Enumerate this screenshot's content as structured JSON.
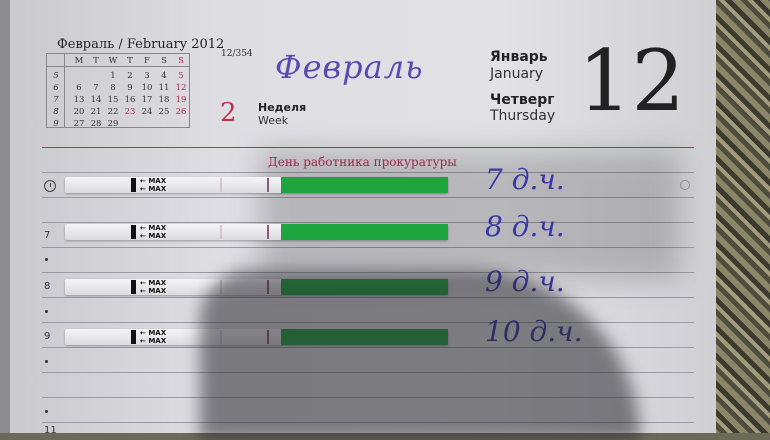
{
  "calendar": {
    "title": "Февраль / February 2012",
    "weekdays": [
      "M",
      "T",
      "W",
      "T",
      "F",
      "S",
      "S"
    ],
    "week_numbers": [
      "5",
      "6",
      "7",
      "8",
      "9"
    ],
    "rows": [
      [
        "",
        "",
        "1",
        "2",
        "3",
        "4",
        "5"
      ],
      [
        "6",
        "7",
        "8",
        "9",
        "10",
        "11",
        "12"
      ],
      [
        "13",
        "14",
        "15",
        "16",
        "17",
        "18",
        "19"
      ],
      [
        "20",
        "21",
        "22",
        "23",
        "24",
        "25",
        "26"
      ],
      [
        "27",
        "28",
        "29",
        "",
        "",
        "",
        ""
      ]
    ],
    "red_days": [
      "5",
      "12",
      "19",
      "23",
      "26"
    ]
  },
  "page_counter": "12/354",
  "month_handwritten": "Февраль",
  "week": {
    "number": "2",
    "label_ru": "Неделя",
    "label_en": "Week"
  },
  "month": {
    "ru": "Январь",
    "en": "January"
  },
  "weekday": {
    "ru": "Четверг",
    "en": "Thursday"
  },
  "day_number": "12",
  "holiday": "День работника прокуратуры",
  "hours": [
    "7",
    "8",
    "9",
    "11"
  ],
  "strips": [
    {
      "max_label": "MAX",
      "note": "7 д.ч."
    },
    {
      "max_label": "MAX",
      "note": "8 д.ч."
    },
    {
      "max_label": "MAX",
      "note": "9 д.ч."
    },
    {
      "max_label": "MAX",
      "note": "10 д.ч."
    }
  ],
  "colors": {
    "accent_red": "#c0304e",
    "strip_green": "#1fa53f",
    "ink": "#3b36a8"
  }
}
